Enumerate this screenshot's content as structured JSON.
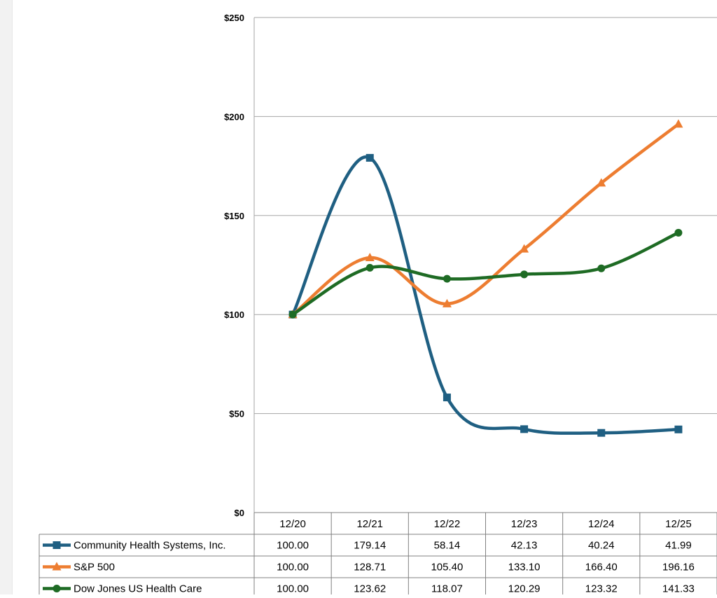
{
  "chart_data": {
    "type": "line",
    "title": "",
    "xlabel": "",
    "ylabel": "",
    "categories": [
      "12/20",
      "12/21",
      "12/22",
      "12/23",
      "12/24",
      "12/25"
    ],
    "ylim": [
      0,
      250
    ],
    "yticks": [
      0,
      50,
      100,
      150,
      200,
      250
    ],
    "ytick_labels": [
      "$0",
      "$50",
      "$100",
      "$150",
      "$200",
      "$250"
    ],
    "grid": true,
    "legend": "data-table",
    "series": [
      {
        "name": "Community Health Systems, Inc.",
        "marker": "square",
        "color": "#1f5f82",
        "values": [
          100.0,
          179.14,
          58.14,
          42.13,
          40.24,
          41.99
        ],
        "labels": [
          "100.00",
          "179.14",
          "58.14",
          "42.13",
          "40.24",
          "41.99"
        ]
      },
      {
        "name": "S&P 500",
        "marker": "triangle",
        "color": "#ed7d31",
        "values": [
          100.0,
          128.71,
          105.4,
          133.1,
          166.4,
          196.16
        ],
        "labels": [
          "100.00",
          "128.71",
          "105.40",
          "133.10",
          "166.40",
          "196.16"
        ]
      },
      {
        "name": "Dow Jones US Health Care",
        "marker": "circle",
        "color": "#1e6b24",
        "values": [
          100.0,
          123.62,
          118.07,
          120.29,
          123.32,
          141.33
        ],
        "labels": [
          "100.00",
          "123.62",
          "118.07",
          "120.29",
          "123.32",
          "141.33"
        ]
      }
    ]
  }
}
